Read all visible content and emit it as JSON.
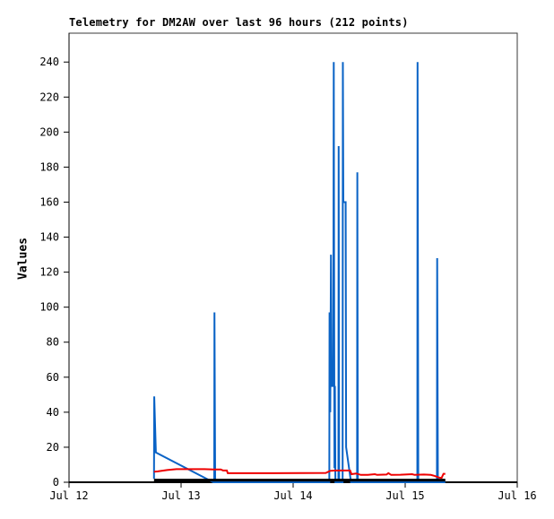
{
  "title": "Telemetry for DM2AW over last 96 hours (212 points)",
  "y_axis_label": "Values",
  "colors": {
    "background": "#ffffff",
    "box_border": "#3a3a3a",
    "axis": "#000000",
    "series_blue": "#0a63c6",
    "series_red": "#ee0000",
    "series_black": "#000000"
  },
  "chart_data": {
    "type": "line",
    "title": "Telemetry for DM2AW over last 96 hours (212 points)",
    "xlabel": "",
    "ylabel": "Values",
    "x_unit": "hours since Jul 12 00:00",
    "xlim": [
      0,
      96
    ],
    "ylim": [
      0,
      240
    ],
    "y_value_at_box_top": 256.5,
    "grid": false,
    "legend": "none",
    "x_ticks": [
      {
        "t": 0,
        "label": "Jul 12"
      },
      {
        "t": 24,
        "label": "Jul 13"
      },
      {
        "t": 48,
        "label": "Jul 14"
      },
      {
        "t": 72,
        "label": "Jul 15"
      },
      {
        "t": 96,
        "label": "Jul 16"
      }
    ],
    "y_ticks": [
      0,
      20,
      40,
      60,
      80,
      100,
      120,
      140,
      160,
      180,
      200,
      220,
      240
    ],
    "series": [
      {
        "name": "channel-1-blue",
        "color": "#0a63c6",
        "stroke_width": 2,
        "points": [
          [
            18.2,
            2
          ],
          [
            18.25,
            49
          ],
          [
            18.6,
            17
          ],
          [
            30.9,
            0
          ],
          [
            31.1,
            0
          ],
          [
            31.15,
            97
          ],
          [
            31.3,
            0
          ],
          [
            55.75,
            0
          ],
          [
            55.8,
            97
          ],
          [
            55.95,
            40
          ],
          [
            56.1,
            130
          ],
          [
            56.25,
            55
          ],
          [
            56.6,
            55
          ],
          [
            56.7,
            240
          ],
          [
            56.85,
            8
          ],
          [
            56.95,
            55
          ],
          [
            57.05,
            0
          ],
          [
            57.7,
            0
          ],
          [
            57.75,
            192
          ],
          [
            57.85,
            0
          ],
          [
            58.6,
            0
          ],
          [
            58.65,
            240
          ],
          [
            58.75,
            160
          ],
          [
            59.25,
            160
          ],
          [
            59.35,
            20
          ],
          [
            60.4,
            0
          ],
          [
            61.7,
            0
          ],
          [
            61.75,
            177
          ],
          [
            61.85,
            0
          ],
          [
            74.6,
            0
          ],
          [
            74.65,
            240
          ],
          [
            74.8,
            0
          ],
          [
            78.8,
            0
          ],
          [
            78.85,
            128
          ],
          [
            79.0,
            0
          ],
          [
            80.6,
            0
          ]
        ]
      },
      {
        "name": "channel-2-red",
        "color": "#ee0000",
        "stroke_width": 2,
        "points": [
          [
            18.2,
            6.0
          ],
          [
            19.0,
            6.2
          ],
          [
            21.0,
            7.0
          ],
          [
            23.0,
            7.5
          ],
          [
            29.0,
            7.5
          ],
          [
            31.0,
            7.3
          ],
          [
            32.5,
            7.3
          ],
          [
            33.0,
            6.7
          ],
          [
            33.8,
            6.7
          ],
          [
            34.0,
            5.2
          ],
          [
            44.0,
            5.2
          ],
          [
            55.0,
            5.3
          ],
          [
            55.9,
            6.5
          ],
          [
            57.0,
            6.7
          ],
          [
            60.2,
            6.7
          ],
          [
            60.5,
            4.6
          ],
          [
            61.5,
            5.0
          ],
          [
            62.5,
            4.2
          ],
          [
            64.0,
            4.2
          ],
          [
            65.5,
            4.6
          ],
          [
            66.0,
            4.2
          ],
          [
            68.0,
            4.4
          ],
          [
            68.4,
            5.2
          ],
          [
            69.0,
            4.2
          ],
          [
            71.0,
            4.3
          ],
          [
            73.5,
            4.6
          ],
          [
            74.0,
            4.2
          ],
          [
            76.0,
            4.4
          ],
          [
            77.5,
            4.2
          ],
          [
            78.3,
            3.6
          ],
          [
            79.3,
            2.6
          ],
          [
            79.8,
            2.5
          ],
          [
            80.2,
            4.8
          ],
          [
            80.6,
            4.8
          ]
        ]
      },
      {
        "name": "channel-3-black",
        "color": "#000000",
        "stroke_width": 3,
        "points": [
          [
            18.2,
            1.2
          ],
          [
            80.6,
            1.2
          ]
        ]
      }
    ]
  }
}
